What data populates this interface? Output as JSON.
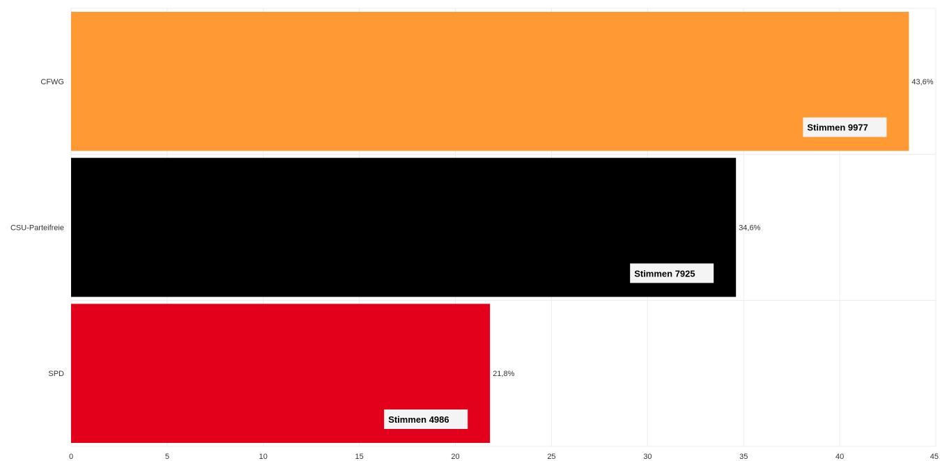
{
  "chart_data": {
    "type": "bar",
    "orientation": "horizontal",
    "categories": [
      "CFWG",
      "CSU-Parteifreie",
      "SPD"
    ],
    "values": [
      43.6,
      34.6,
      21.8
    ],
    "value_labels": [
      "43,6%",
      "34,6%",
      "21,8%"
    ],
    "vote_labels": [
      "Stimmen 9977",
      "Stimmen 7925",
      "Stimmen 4986"
    ],
    "colors": [
      "#ff9933",
      "#000000",
      "#e2001a"
    ],
    "xlim": [
      0,
      45
    ],
    "x_ticks": [
      0,
      5,
      10,
      15,
      20,
      25,
      30,
      35,
      40,
      45
    ],
    "grid": true,
    "legend": "none"
  }
}
